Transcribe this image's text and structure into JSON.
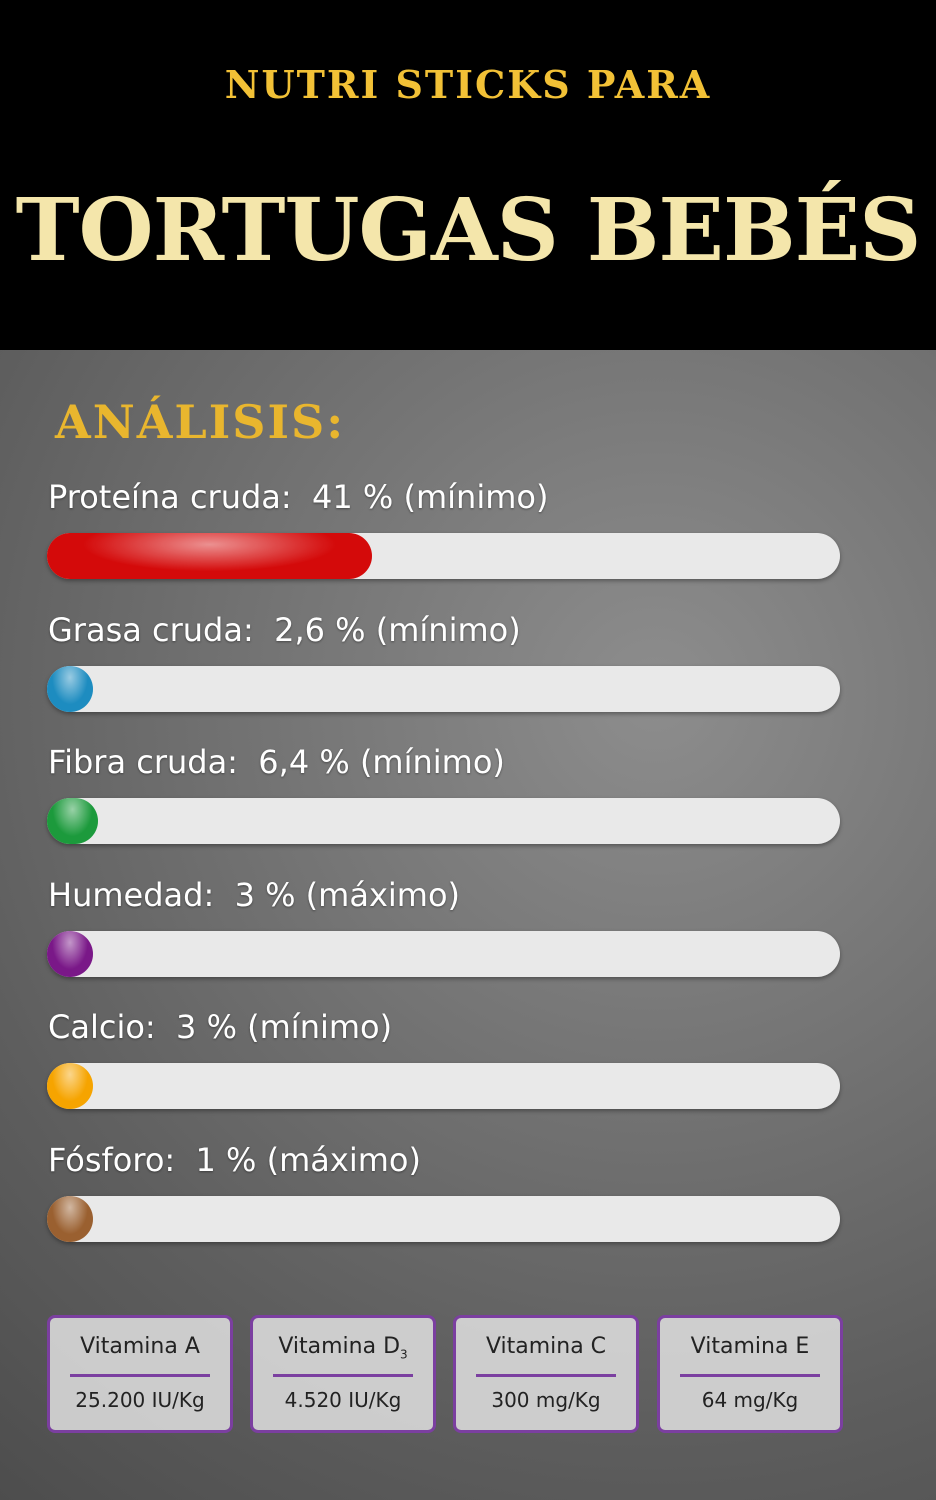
{
  "header": {
    "subtitle": "NUTRI STICKS PARA",
    "title": "TORTUGAS BEBÉS"
  },
  "section_title": "ANÁLISIS:",
  "items": [
    {
      "name": "Proteína cruda:",
      "value": 41,
      "value_label": "41 %",
      "qualifier": "(mínimo)",
      "color": "#d40a0a"
    },
    {
      "name": "Grasa cruda:",
      "value": 2.6,
      "value_label": "2,6 %",
      "qualifier": "(mínimo)",
      "color": "#1d8cc0"
    },
    {
      "name": "Fibra cruda:",
      "value": 6.4,
      "value_label": "6,4 %",
      "qualifier": "(mínimo)",
      "color": "#1c9a3c"
    },
    {
      "name": "Humedad:",
      "value": 3,
      "value_label": "3 %",
      "qualifier": "(máximo)",
      "color": "#7a1888"
    },
    {
      "name": "Calcio:",
      "value": 3,
      "value_label": "3 %",
      "qualifier": "(mínimo)",
      "color": "#f6a400"
    },
    {
      "name": "Fósforo:",
      "value": 1,
      "value_label": "1 %",
      "qualifier": "(máximo)",
      "color": "#9a6030"
    }
  ],
  "vitamins": [
    {
      "name": "Vitamina A",
      "value": "25.200 IU/Kg"
    },
    {
      "name": "Vitamina D",
      "sub": "3",
      "value": "4.520 IU/Kg"
    },
    {
      "name": "Vitamina C",
      "value": "300 mg/Kg"
    },
    {
      "name": "Vitamina E",
      "value": "64 mg/Kg"
    }
  ]
}
